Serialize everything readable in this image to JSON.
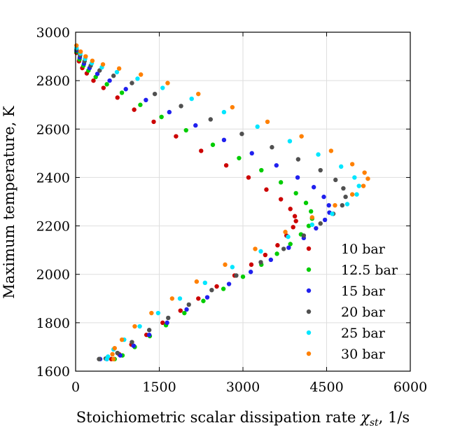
{
  "chart_data": {
    "type": "scatter",
    "title": "",
    "xlabel_prefix": "Stoichiometric scalar dissipation rate ",
    "xlabel_symbol": "χ",
    "xlabel_subscript": "st",
    "xlabel_suffix": ", 1/s",
    "ylabel": "Maximum temperature, K",
    "xlim": [
      0,
      6000
    ],
    "ylim": [
      1600,
      3000
    ],
    "xticks": [
      "0",
      "1500",
      "3000",
      "4500",
      "6000"
    ],
    "yticks": [
      "1600",
      "1800",
      "2000",
      "2200",
      "2400",
      "2600",
      "2800",
      "3000"
    ],
    "grid": true,
    "legend_position": "bottom-right",
    "series": [
      {
        "name": "10 bar",
        "color": "#cc0000",
        "points": [
          [
            15,
            2915
          ],
          [
            60,
            2880
          ],
          [
            120,
            2852
          ],
          [
            200,
            2830
          ],
          [
            320,
            2800
          ],
          [
            500,
            2770
          ],
          [
            750,
            2730
          ],
          [
            1050,
            2680
          ],
          [
            1400,
            2630
          ],
          [
            1800,
            2570
          ],
          [
            2250,
            2510
          ],
          [
            2700,
            2450
          ],
          [
            3100,
            2400
          ],
          [
            3420,
            2350
          ],
          [
            3680,
            2310
          ],
          [
            3850,
            2270
          ],
          [
            3930,
            2240
          ],
          [
            3950,
            2220
          ],
          [
            3900,
            2195
          ],
          [
            3780,
            2160
          ],
          [
            3620,
            2120
          ],
          [
            3400,
            2080
          ],
          [
            3150,
            2040
          ],
          [
            2850,
            1995
          ],
          [
            2530,
            1950
          ],
          [
            2200,
            1900
          ],
          [
            1880,
            1850
          ],
          [
            1560,
            1800
          ],
          [
            1270,
            1750
          ],
          [
            1000,
            1710
          ],
          [
            780,
            1670
          ],
          [
            640,
            1650
          ]
        ]
      },
      {
        "name": "12.5 bar",
        "color": "#00cc00",
        "points": [
          [
            15,
            2920
          ],
          [
            70,
            2888
          ],
          [
            140,
            2862
          ],
          [
            230,
            2842
          ],
          [
            360,
            2815
          ],
          [
            560,
            2785
          ],
          [
            830,
            2750
          ],
          [
            1160,
            2700
          ],
          [
            1540,
            2650
          ],
          [
            1980,
            2595
          ],
          [
            2460,
            2535
          ],
          [
            2930,
            2480
          ],
          [
            3330,
            2430
          ],
          [
            3680,
            2380
          ],
          [
            3950,
            2335
          ],
          [
            4130,
            2295
          ],
          [
            4220,
            2260
          ],
          [
            4240,
            2230
          ],
          [
            4180,
            2200
          ],
          [
            4040,
            2165
          ],
          [
            3850,
            2125
          ],
          [
            3610,
            2085
          ],
          [
            3330,
            2040
          ],
          [
            3000,
            1990
          ],
          [
            2650,
            1940
          ],
          [
            2290,
            1890
          ],
          [
            1950,
            1840
          ],
          [
            1620,
            1790
          ],
          [
            1330,
            1745
          ],
          [
            1060,
            1700
          ],
          [
            840,
            1665
          ],
          [
            700,
            1650
          ]
        ]
      },
      {
        "name": "15 bar",
        "color": "#2020ee",
        "points": [
          [
            15,
            2925
          ],
          [
            75,
            2896
          ],
          [
            150,
            2870
          ],
          [
            250,
            2852
          ],
          [
            390,
            2828
          ],
          [
            610,
            2800
          ],
          [
            900,
            2765
          ],
          [
            1260,
            2720
          ],
          [
            1680,
            2670
          ],
          [
            2150,
            2615
          ],
          [
            2660,
            2555
          ],
          [
            3160,
            2500
          ],
          [
            3600,
            2450
          ],
          [
            3980,
            2400
          ],
          [
            4270,
            2360
          ],
          [
            4450,
            2320
          ],
          [
            4540,
            2285
          ],
          [
            4550,
            2255
          ],
          [
            4470,
            2225
          ],
          [
            4310,
            2190
          ],
          [
            4090,
            2150
          ],
          [
            3820,
            2110
          ],
          [
            3500,
            2060
          ],
          [
            3140,
            2010
          ],
          [
            2750,
            1960
          ],
          [
            2360,
            1905
          ],
          [
            1990,
            1855
          ],
          [
            1640,
            1800
          ],
          [
            1320,
            1750
          ],
          [
            1040,
            1705
          ],
          [
            800,
            1665
          ],
          [
            560,
            1650
          ],
          [
            440,
            1650
          ]
        ]
      },
      {
        "name": "20 bar",
        "color": "#505050",
        "points": [
          [
            15,
            2930
          ],
          [
            80,
            2904
          ],
          [
            160,
            2880
          ],
          [
            270,
            2862
          ],
          [
            430,
            2842
          ],
          [
            680,
            2820
          ],
          [
            1010,
            2790
          ],
          [
            1420,
            2745
          ],
          [
            1890,
            2695
          ],
          [
            2420,
            2640
          ],
          [
            2980,
            2580
          ],
          [
            3520,
            2525
          ],
          [
            3990,
            2475
          ],
          [
            4390,
            2430
          ],
          [
            4660,
            2390
          ],
          [
            4800,
            2355
          ],
          [
            4840,
            2320
          ],
          [
            4780,
            2285
          ],
          [
            4620,
            2250
          ],
          [
            4390,
            2210
          ],
          [
            4090,
            2160
          ],
          [
            3730,
            2105
          ],
          [
            3320,
            2050
          ],
          [
            2880,
            1995
          ],
          [
            2440,
            1935
          ],
          [
            2030,
            1875
          ],
          [
            1660,
            1820
          ],
          [
            1320,
            1770
          ],
          [
            1010,
            1720
          ],
          [
            750,
            1675
          ],
          [
            540,
            1652
          ],
          [
            420,
            1650
          ]
        ]
      },
      {
        "name": "25 bar",
        "color": "#00e6ff",
        "points": [
          [
            15,
            2935
          ],
          [
            85,
            2912
          ],
          [
            170,
            2890
          ],
          [
            290,
            2872
          ],
          [
            470,
            2855
          ],
          [
            740,
            2835
          ],
          [
            1110,
            2808
          ],
          [
            1560,
            2770
          ],
          [
            2080,
            2725
          ],
          [
            2660,
            2670
          ],
          [
            3260,
            2610
          ],
          [
            3840,
            2550
          ],
          [
            4350,
            2495
          ],
          [
            4760,
            2445
          ],
          [
            5000,
            2400
          ],
          [
            5080,
            2365
          ],
          [
            5040,
            2330
          ],
          [
            4870,
            2290
          ],
          [
            4600,
            2250
          ],
          [
            4240,
            2205
          ],
          [
            3810,
            2155
          ],
          [
            3320,
            2095
          ],
          [
            2810,
            2030
          ],
          [
            2320,
            1965
          ],
          [
            1870,
            1900
          ],
          [
            1480,
            1840
          ],
          [
            1150,
            1785
          ],
          [
            870,
            1730
          ],
          [
            680,
            1690
          ],
          [
            580,
            1660
          ],
          [
            560,
            1650
          ]
        ]
      },
      {
        "name": "30 bar",
        "color": "#ff8000",
        "points": [
          [
            15,
            2945
          ],
          [
            90,
            2920
          ],
          [
            180,
            2900
          ],
          [
            300,
            2882
          ],
          [
            490,
            2867
          ],
          [
            780,
            2850
          ],
          [
            1170,
            2825
          ],
          [
            1650,
            2790
          ],
          [
            2200,
            2745
          ],
          [
            2810,
            2690
          ],
          [
            3440,
            2630
          ],
          [
            4050,
            2570
          ],
          [
            4580,
            2510
          ],
          [
            4960,
            2455
          ],
          [
            5180,
            2420
          ],
          [
            5240,
            2395
          ],
          [
            5160,
            2365
          ],
          [
            4960,
            2330
          ],
          [
            4650,
            2285
          ],
          [
            4240,
            2235
          ],
          [
            3760,
            2175
          ],
          [
            3220,
            2105
          ],
          [
            2680,
            2040
          ],
          [
            2170,
            1970
          ],
          [
            1730,
            1900
          ],
          [
            1360,
            1840
          ],
          [
            1060,
            1785
          ],
          [
            830,
            1730
          ],
          [
            700,
            1695
          ],
          [
            660,
            1670
          ],
          [
            680,
            1650
          ]
        ]
      }
    ]
  }
}
